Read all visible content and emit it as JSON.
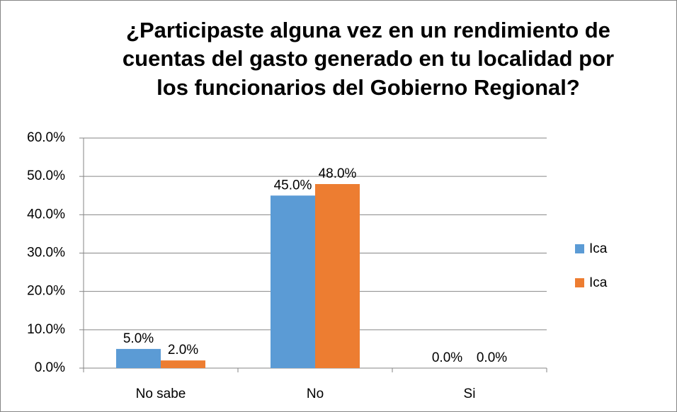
{
  "chart_data": {
    "type": "bar",
    "title": [
      "¿Participaste alguna vez en un rendimiento de",
      "cuentas del gasto generado en tu localidad por",
      "los funcionarios del Gobierno Regional?"
    ],
    "categories": [
      "No sabe",
      "No",
      "Si"
    ],
    "series": [
      {
        "name": "Ica",
        "color": "#5b9bd5",
        "values": [
          5,
          45,
          0
        ],
        "value_labels": [
          "5.0%",
          "45.0%",
          "0.0%"
        ]
      },
      {
        "name": "Ica",
        "color": "#ed7d31",
        "values": [
          2,
          48,
          0
        ],
        "value_labels": [
          "2.0%",
          "48.0%",
          "0.0%"
        ]
      }
    ],
    "ylim": [
      0,
      60
    ],
    "yticks": [
      {
        "value": 0,
        "label": "0.0%"
      },
      {
        "value": 10,
        "label": "10.0%"
      },
      {
        "value": 20,
        "label": "20.0%"
      },
      {
        "value": 30,
        "label": "30.0%"
      },
      {
        "value": 40,
        "label": "40.0%"
      },
      {
        "value": 50,
        "label": "50.0%"
      },
      {
        "value": 60,
        "label": "60.0%"
      }
    ],
    "grid": true,
    "legend": "right"
  }
}
